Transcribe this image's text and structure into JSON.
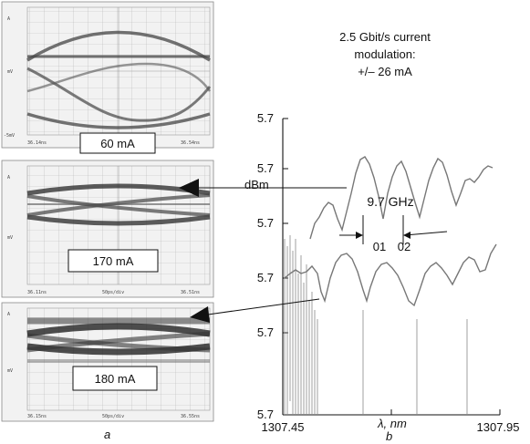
{
  "eye_diagrams": [
    {
      "current_label": "60 mA",
      "left_small": "-5mV",
      "right_small": "36.54ns",
      "left_bottom": "36.14ns",
      "mid_small": ""
    },
    {
      "current_label": "170 mA",
      "left_small": "-5mV",
      "right_small": "36.51ns",
      "left_bottom": "36.11ns",
      "mid_small": "50ps/div"
    },
    {
      "current_label": "180 mA",
      "left_small": "-5mV",
      "right_small": "36.55ns",
      "left_bottom": "36.15ns",
      "mid_small": "50ps/div"
    }
  ],
  "panel_labels": {
    "a": "a",
    "b": "b"
  },
  "spectrum": {
    "title_lines": [
      "2.5 Gbit/s current",
      "modulation:",
      "+/– 26 mA"
    ],
    "ylabel": "dBm",
    "xlabel": "λ, nm",
    "yticks": [
      "5.7",
      "5.7",
      "5.7",
      "5.7",
      "5.7",
      "5.7"
    ],
    "xticks": [
      "1307.45",
      "1307.95"
    ],
    "annotation_freq": "9.7 GHz",
    "annotation_01": "01",
    "annotation_02": "02"
  },
  "chart_data": {
    "type": "line",
    "title": "2.5 Gbit/s current modulation: +/– 26 mA",
    "xlabel": "λ, nm",
    "ylabel": "dBm",
    "xlim": [
      1307.45,
      1307.95
    ],
    "x_tick_labels": [
      "1307.45",
      "1307.95"
    ],
    "y_tick_labels": [
      "5.7",
      "5.7",
      "5.7",
      "5.7",
      "5.7",
      "5.7"
    ],
    "annotations": [
      "9.7 GHz",
      "01",
      "02"
    ]
  }
}
